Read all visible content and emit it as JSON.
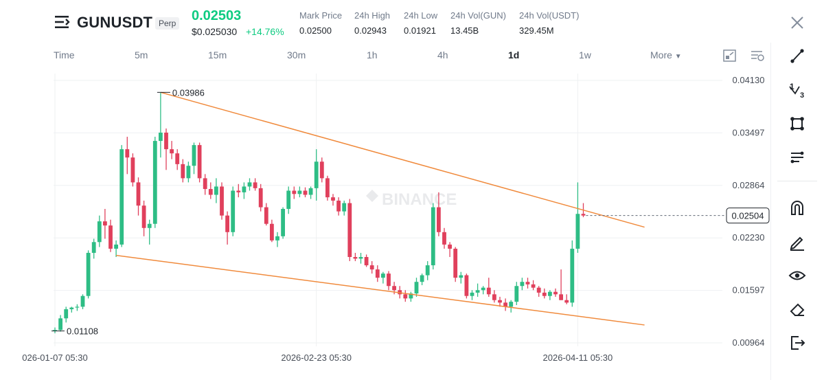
{
  "header": {
    "symbol": "GUNUSDT",
    "contract_type": "Perp",
    "last_price": "0.02503",
    "last_price_usd": "$0.025030",
    "change_pct": "+14.76%",
    "stats": [
      {
        "label": "Mark Price",
        "value": "0.02500"
      },
      {
        "label": "24h High",
        "value": "0.02943"
      },
      {
        "label": "24h Low",
        "value": "0.01921"
      },
      {
        "label": "24h Vol(GUN)",
        "value": "13.45B"
      },
      {
        "label": "24h Vol(USDT)",
        "value": "329.45M"
      }
    ],
    "icons": {
      "menu": "menu-icon",
      "close": "close-icon"
    }
  },
  "intervals": {
    "items": [
      "Time",
      "5m",
      "15m",
      "30m",
      "1h",
      "4h",
      "1d",
      "1w"
    ],
    "active": "1d",
    "more_label": "More",
    "toolbar_icons": [
      "chart-type-icon",
      "indicator-settings-icon"
    ]
  },
  "right_toolbar": [
    "line-tool-icon",
    "fib-tool-icon",
    "shape-tool-icon",
    "pattern-tool-icon",
    "magnet-icon",
    "pencil-icon",
    "eye-icon",
    "eraser-icon",
    "exit-icon"
  ],
  "colors": {
    "up": "#2ebd85",
    "down": "#e0405c",
    "trendline": "#f08a3c",
    "text": "#1e2329",
    "muted": "#707a8a"
  },
  "watermark": "BINANCE",
  "chart_data": {
    "type": "candlestick",
    "y_ticks": [
      "0.04130",
      "0.03497",
      "0.02864",
      "0.02230",
      "0.01597",
      "0.00964"
    ],
    "ylim": [
      0.00964,
      0.0413
    ],
    "x_labels": [
      {
        "label": "026-01-07 05:30",
        "day": 0
      },
      {
        "label": "2026-02-23 05:30",
        "day": 47
      },
      {
        "label": "2026-04-11 05:30",
        "day": 94
      }
    ],
    "current_price": "0.02504",
    "annotations": [
      {
        "label": "0.03986",
        "day": 19,
        "price": 0.03986
      },
      {
        "label": "0.01108",
        "day": 0,
        "price": 0.01108
      }
    ],
    "trendlines": [
      {
        "name": "upper",
        "from": {
          "day": 19,
          "price": 0.03986
        },
        "to": {
          "day": 106,
          "price": 0.0236
        }
      },
      {
        "name": "lower",
        "from": {
          "day": 11,
          "price": 0.0202
        },
        "to": {
          "day": 106,
          "price": 0.0118
        }
      }
    ],
    "candles": [
      [
        0.0111,
        0.0115,
        0.0108,
        0.0112
      ],
      [
        0.0112,
        0.013,
        0.011,
        0.0126
      ],
      [
        0.0126,
        0.014,
        0.0121,
        0.0137
      ],
      [
        0.0137,
        0.014,
        0.0133,
        0.0139
      ],
      [
        0.0139,
        0.0143,
        0.0135,
        0.014
      ],
      [
        0.014,
        0.0155,
        0.0137,
        0.0153
      ],
      [
        0.0153,
        0.0208,
        0.015,
        0.0205
      ],
      [
        0.0205,
        0.0222,
        0.0198,
        0.0218
      ],
      [
        0.0218,
        0.025,
        0.0212,
        0.0243
      ],
      [
        0.0243,
        0.0258,
        0.0222,
        0.0238
      ],
      [
        0.0238,
        0.0245,
        0.0206,
        0.021
      ],
      [
        0.021,
        0.022,
        0.02,
        0.0215
      ],
      [
        0.0215,
        0.0335,
        0.0212,
        0.033
      ],
      [
        0.033,
        0.0345,
        0.03,
        0.032
      ],
      [
        0.032,
        0.0325,
        0.0285,
        0.029
      ],
      [
        0.029,
        0.0296,
        0.025,
        0.0262
      ],
      [
        0.0262,
        0.0268,
        0.0225,
        0.0235
      ],
      [
        0.0235,
        0.0245,
        0.0215,
        0.024
      ],
      [
        0.024,
        0.0345,
        0.0235,
        0.034
      ],
      [
        0.034,
        0.0398,
        0.032,
        0.035
      ],
      [
        0.035,
        0.0355,
        0.0305,
        0.033
      ],
      [
        0.033,
        0.034,
        0.0318,
        0.0325
      ],
      [
        0.0325,
        0.033,
        0.0305,
        0.0312
      ],
      [
        0.0312,
        0.0318,
        0.029,
        0.0295
      ],
      [
        0.0295,
        0.0315,
        0.029,
        0.031
      ],
      [
        0.031,
        0.0338,
        0.03,
        0.0335
      ],
      [
        0.0335,
        0.0338,
        0.029,
        0.0295
      ],
      [
        0.0295,
        0.03,
        0.0275,
        0.0282
      ],
      [
        0.0282,
        0.029,
        0.027,
        0.0275
      ],
      [
        0.0275,
        0.0295,
        0.0265,
        0.0285
      ],
      [
        0.0285,
        0.029,
        0.0245,
        0.025
      ],
      [
        0.025,
        0.0255,
        0.0215,
        0.023
      ],
      [
        0.023,
        0.0285,
        0.0225,
        0.028
      ],
      [
        0.028,
        0.0288,
        0.0272,
        0.0278
      ],
      [
        0.0278,
        0.029,
        0.027,
        0.0285
      ],
      [
        0.0285,
        0.0295,
        0.028,
        0.029
      ],
      [
        0.029,
        0.0295,
        0.028,
        0.0283
      ],
      [
        0.0283,
        0.0288,
        0.0255,
        0.026
      ],
      [
        0.026,
        0.0265,
        0.0238,
        0.024
      ],
      [
        0.024,
        0.0245,
        0.0218,
        0.022
      ],
      [
        0.022,
        0.023,
        0.0212,
        0.0225
      ],
      [
        0.0225,
        0.026,
        0.0222,
        0.0258
      ],
      [
        0.0258,
        0.0285,
        0.0252,
        0.028
      ],
      [
        0.028,
        0.0285,
        0.027,
        0.0276
      ],
      [
        0.0276,
        0.0285,
        0.0272,
        0.028
      ],
      [
        0.028,
        0.0284,
        0.0272,
        0.0275
      ],
      [
        0.0275,
        0.0285,
        0.027,
        0.0283
      ],
      [
        0.0283,
        0.033,
        0.0268,
        0.0315
      ],
      [
        0.0315,
        0.032,
        0.029,
        0.0295
      ],
      [
        0.0295,
        0.0298,
        0.0268,
        0.0272
      ],
      [
        0.0272,
        0.0276,
        0.0262,
        0.0268
      ],
      [
        0.0268,
        0.0272,
        0.025,
        0.0255
      ],
      [
        0.0255,
        0.0268,
        0.025,
        0.0265
      ],
      [
        0.0265,
        0.027,
        0.0195,
        0.02
      ],
      [
        0.02,
        0.0205,
        0.0195,
        0.0198
      ],
      [
        0.0198,
        0.0205,
        0.0192,
        0.02
      ],
      [
        0.02,
        0.0203,
        0.0188,
        0.019
      ],
      [
        0.019,
        0.0195,
        0.018,
        0.0185
      ],
      [
        0.0185,
        0.019,
        0.017,
        0.0175
      ],
      [
        0.0175,
        0.0182,
        0.0168,
        0.018
      ],
      [
        0.018,
        0.0183,
        0.016,
        0.0165
      ],
      [
        0.0165,
        0.017,
        0.0155,
        0.016
      ],
      [
        0.016,
        0.0165,
        0.015,
        0.0155
      ],
      [
        0.0155,
        0.016,
        0.0146,
        0.015
      ],
      [
        0.015,
        0.0158,
        0.0146,
        0.0156
      ],
      [
        0.0156,
        0.0175,
        0.0152,
        0.017
      ],
      [
        0.017,
        0.018,
        0.0166,
        0.0178
      ],
      [
        0.0178,
        0.0195,
        0.0172,
        0.019
      ],
      [
        0.019,
        0.0265,
        0.0185,
        0.026
      ],
      [
        0.026,
        0.0278,
        0.0225,
        0.023
      ],
      [
        0.023,
        0.0235,
        0.021,
        0.0215
      ],
      [
        0.0215,
        0.0218,
        0.02,
        0.021
      ],
      [
        0.021,
        0.0212,
        0.017,
        0.0175
      ],
      [
        0.0175,
        0.0182,
        0.0168,
        0.0178
      ],
      [
        0.0178,
        0.018,
        0.015,
        0.0153
      ],
      [
        0.0153,
        0.016,
        0.0148,
        0.0157
      ],
      [
        0.0157,
        0.0168,
        0.0152,
        0.016
      ],
      [
        0.016,
        0.0165,
        0.0155,
        0.0163
      ],
      [
        0.0163,
        0.0175,
        0.0152,
        0.0155
      ],
      [
        0.0155,
        0.016,
        0.0145,
        0.0148
      ],
      [
        0.0148,
        0.0152,
        0.014,
        0.0145
      ],
      [
        0.0145,
        0.015,
        0.0135,
        0.014
      ],
      [
        0.014,
        0.0148,
        0.0133,
        0.0146
      ],
      [
        0.0146,
        0.017,
        0.0142,
        0.0165
      ],
      [
        0.0165,
        0.0175,
        0.016,
        0.017
      ],
      [
        0.017,
        0.0175,
        0.0162,
        0.0167
      ],
      [
        0.0167,
        0.0172,
        0.016,
        0.0163
      ],
      [
        0.0163,
        0.0165,
        0.0152,
        0.0157
      ],
      [
        0.0157,
        0.0162,
        0.015,
        0.0153
      ],
      [
        0.0153,
        0.016,
        0.0148,
        0.0158
      ],
      [
        0.0158,
        0.0162,
        0.0152,
        0.0155
      ],
      [
        0.0155,
        0.0185,
        0.0148,
        0.0148
      ],
      [
        0.0148,
        0.0155,
        0.0143,
        0.0145
      ],
      [
        0.0145,
        0.022,
        0.014,
        0.021
      ],
      [
        0.021,
        0.029,
        0.0205,
        0.0252
      ],
      [
        0.0252,
        0.0265,
        0.0248,
        0.025
      ]
    ]
  }
}
